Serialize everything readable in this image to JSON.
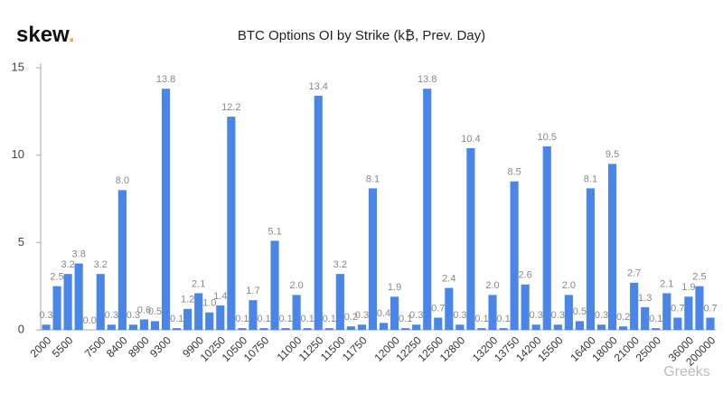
{
  "logo": "skew",
  "logo_dot": ".",
  "watermark": "Greeks",
  "chart_data": {
    "type": "bar",
    "title": "BTC Options OI by Strike (k₿, Prev. Day)",
    "categories": [
      "2000",
      null,
      "5500",
      null,
      null,
      "7500",
      null,
      "8400",
      null,
      "8900",
      null,
      "9300",
      null,
      null,
      "9900",
      null,
      "10250",
      null,
      "10500",
      null,
      "10750",
      null,
      null,
      "11000",
      null,
      "11250",
      null,
      "11500",
      null,
      "11750",
      null,
      null,
      "12000",
      null,
      "12250",
      null,
      "12500",
      null,
      "12800",
      null,
      null,
      "13200",
      null,
      "13750",
      null,
      "14200",
      null,
      "15500",
      null,
      null,
      "16400",
      null,
      "18000",
      null,
      "21000",
      null,
      "25000",
      null,
      null,
      "36000",
      null,
      "200000"
    ],
    "values": [
      0.3,
      2.5,
      3.2,
      3.8,
      0.0,
      3.2,
      0.3,
      8.0,
      0.3,
      0.6,
      0.5,
      13.8,
      0.1,
      1.2,
      2.1,
      1.0,
      1.4,
      12.2,
      0.1,
      1.7,
      0.1,
      5.1,
      0.1,
      2.0,
      0.1,
      13.4,
      0.1,
      3.2,
      0.2,
      0.3,
      8.1,
      0.4,
      1.9,
      0.1,
      0.3,
      13.8,
      0.7,
      2.4,
      0.3,
      10.4,
      0.1,
      2.0,
      0.1,
      8.5,
      2.6,
      0.3,
      10.5,
      0.3,
      2.0,
      0.5,
      8.1,
      0.3,
      9.5,
      0.2,
      2.7,
      1.3,
      0.1,
      2.1,
      0.7,
      1.9,
      2.5,
      0.7
    ],
    "value_labels": [
      "0.3",
      "2.5",
      "3.2",
      "3.8",
      "0.0",
      "3.2",
      "0.3",
      "8.0",
      "0.3",
      "0.6",
      "0.5",
      "13.8",
      "0.1",
      "1.2",
      "2.1",
      "1.0",
      "1.4",
      "12.2",
      "0.1",
      "1.7",
      "0.1",
      "5.1",
      "0.1",
      "2.0",
      "0.1",
      "13.4",
      "0.1",
      "3.2",
      "0.2",
      "0.3",
      "8.1",
      "0.4",
      "1.9",
      "0.1",
      "0.3",
      "13.8",
      "0.7",
      "2.4",
      "0.3",
      "10.4",
      "0.1",
      "2.0",
      "0.1",
      "8.5",
      "2.6",
      "0.3",
      "10.5",
      "0.3",
      "2.0",
      "0.5",
      "8.1",
      "0.3",
      "9.5",
      "0.2",
      "2.7",
      "1.3",
      "0.1",
      "2.1",
      "0.7",
      "1.9",
      "2.5",
      "0.7"
    ],
    "color": "#4a86e8",
    "ylim": [
      0,
      15
    ],
    "yticks": [
      0,
      5,
      10,
      15
    ],
    "grid": false
  }
}
